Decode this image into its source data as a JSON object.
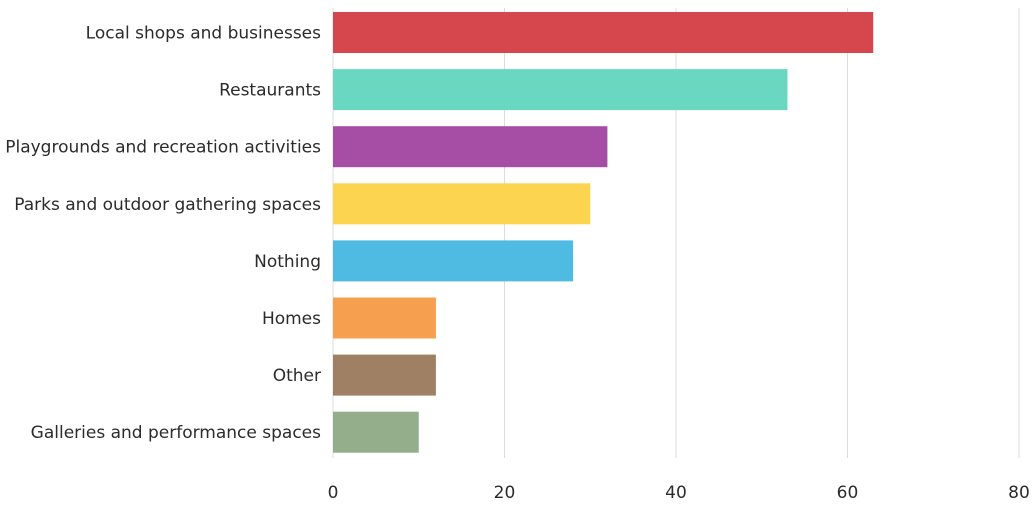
{
  "chart_data": {
    "type": "bar",
    "orientation": "horizontal",
    "title": "",
    "xlabel": "",
    "ylabel": "",
    "xlim": [
      0,
      80
    ],
    "x_ticks": [
      0,
      20,
      40,
      60,
      80
    ],
    "grid": true,
    "categories": [
      "Local shops and businesses",
      "Restaurants",
      "Playgrounds and recreation activities",
      "Parks and outdoor gathering spaces",
      "Nothing",
      "Homes",
      "Other",
      "Galleries and performance spaces"
    ],
    "values": [
      63,
      53,
      32,
      30,
      28,
      12,
      12,
      10
    ],
    "colors": [
      "#d6474d",
      "#6ad8c0",
      "#a64ea5",
      "#fdd44f",
      "#4fbbe3",
      "#f6a04f",
      "#a08065",
      "#94ad8a"
    ]
  }
}
